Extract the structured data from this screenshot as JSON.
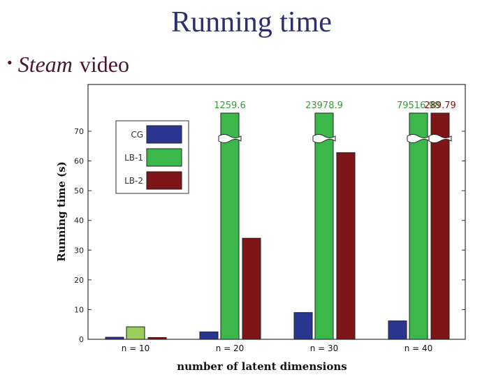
{
  "slide": {
    "title": "Running time",
    "bullet": {
      "italic": "Steam",
      "text": "video"
    }
  },
  "chart_data": {
    "type": "bar",
    "title": "",
    "xlabel": "number of latent dimensions",
    "ylabel": "Running time (s)",
    "ylim": [
      0,
      80
    ],
    "yticks": [
      0,
      10,
      20,
      30,
      40,
      50,
      60,
      70
    ],
    "categories": [
      "n = 10",
      "n = 20",
      "n = 30",
      "n = 40"
    ],
    "series": [
      {
        "name": "CG",
        "color": "#2a3590",
        "values": [
          0.7,
          2.5,
          9,
          6.2
        ]
      },
      {
        "name": "LB-1",
        "color": "#3cb84a",
        "values": [
          4.2,
          1259.6,
          23978.9,
          79516.98
        ]
      },
      {
        "name": "LB-2",
        "color": "#7e1618",
        "values": [
          0.6,
          34,
          62.8,
          289.79
        ]
      }
    ],
    "value_labels": [
      {
        "category": "n = 20",
        "series": "LB-1",
        "text": "1259.6",
        "color": "#3a9a3a"
      },
      {
        "category": "n = 30",
        "series": "LB-1",
        "text": "23978.9",
        "color": "#3a9a3a"
      },
      {
        "category": "n = 40",
        "series": "LB-1",
        "text": "79516.98",
        "color": "#3a9a3a"
      },
      {
        "category": "n = 40",
        "series": "LB-2",
        "text": "289.79",
        "color": "#7e1618"
      }
    ],
    "axis_break": true,
    "grid": false,
    "legend": "top-left"
  }
}
